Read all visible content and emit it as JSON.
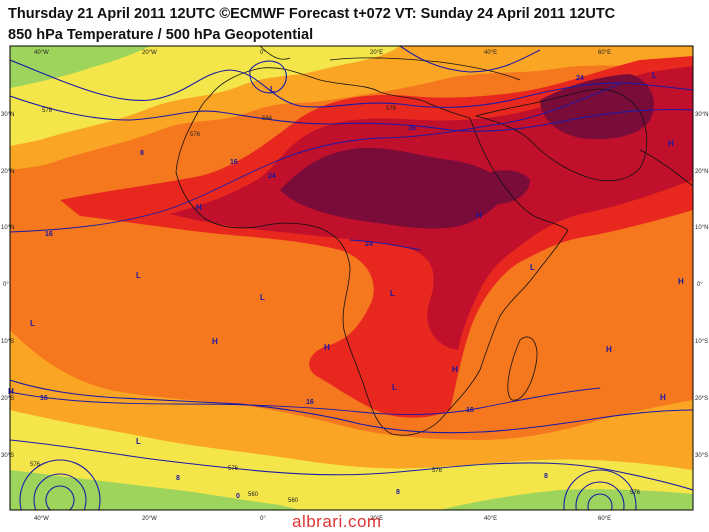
{
  "header": {
    "title_line1": "Thursday 21 April 2011 12UTC ©ECMWF Forecast t+072 VT: Sunday 24 April 2011 12UTC",
    "title_line2": "850 hPa Temperature / 500 hPa Geopotential"
  },
  "axes": {
    "top_lon": [
      "40°W",
      "20°W",
      "0°",
      "20°E",
      "40°E",
      "60°E"
    ],
    "bottom_lon": [
      "40°W",
      "20°W",
      "0°",
      "20°E",
      "40°E",
      "60°E"
    ],
    "left_lat": [
      "30°N",
      "20°N",
      "10°N",
      "0°",
      "10°S",
      "20°S",
      "30°S"
    ],
    "right_lat": [
      "30°N",
      "20°N",
      "10°N",
      "0°",
      "10°S",
      "20°S",
      "30°S"
    ]
  },
  "temperature_labels": [
    "24",
    "24",
    "24",
    "16",
    "16",
    "16",
    "16",
    "16",
    "16",
    "8",
    "8",
    "8",
    "8",
    "0"
  ],
  "geopotential_labels": [
    "576",
    "576",
    "576",
    "576",
    "576",
    "576",
    "576",
    "584",
    "560",
    "560"
  ],
  "pressure_centers": [
    "L",
    "L",
    "L",
    "L",
    "L",
    "L",
    "L",
    "L",
    "L",
    "H",
    "H",
    "H",
    "H",
    "H",
    "H",
    "H",
    "H",
    "H",
    "H"
  ],
  "watermark": "albrari.com",
  "colors": {
    "green": "#9ed45c",
    "yellow": "#f4e64a",
    "orange_light": "#fba525",
    "orange": "#f5781e",
    "red": "#e8281f",
    "dark_red": "#c0102c",
    "maroon": "#7a0c3a",
    "contour": "#1a1aa8",
    "coast": "#111111"
  }
}
